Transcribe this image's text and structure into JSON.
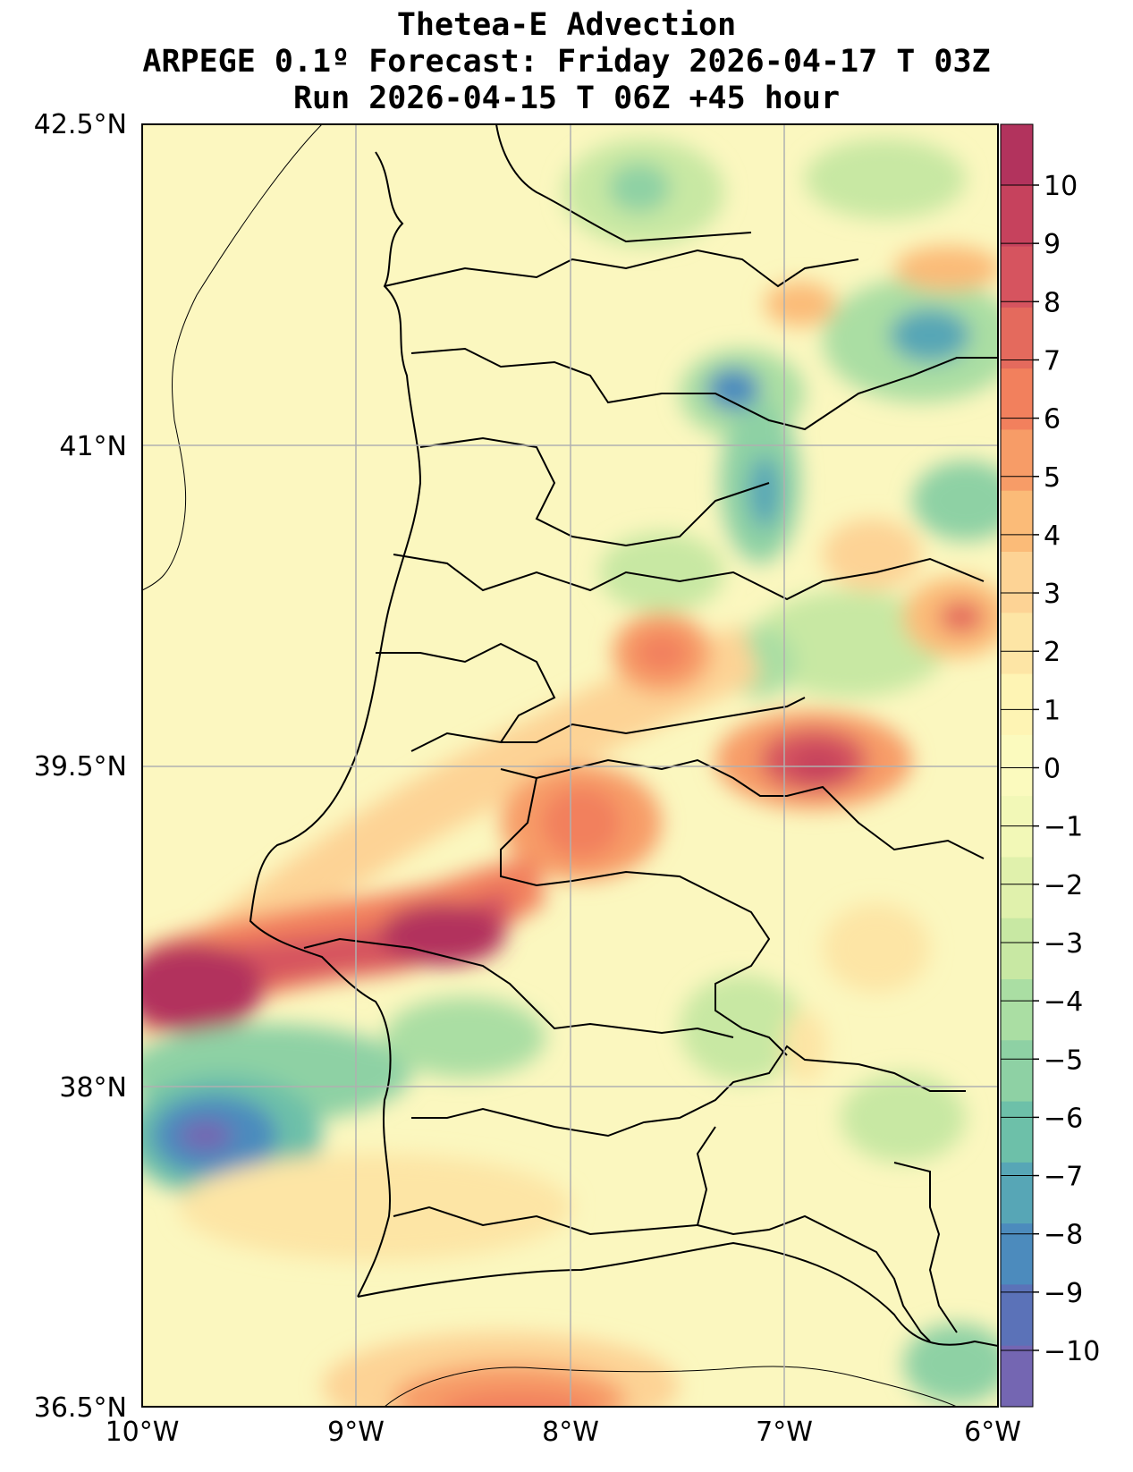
{
  "title": {
    "line1": "Thetea-E Advection",
    "line2": "ARPEGE 0.1º Forecast: Friday 2026-04-17 T 03Z",
    "line3": "Run 2026-04-15 T 06Z +45 hour"
  },
  "map": {
    "lat_labels": [
      "42.5°N",
      "41°N",
      "39.5°N",
      "38°N",
      "36.5°N"
    ],
    "lon_labels": [
      "10°W",
      "9°W",
      "8°W",
      "7°W",
      "6°W"
    ],
    "gridlines": true
  },
  "colorbar": {
    "ticks": [
      "10",
      "9",
      "8",
      "7",
      "6",
      "5",
      "4",
      "3",
      "2",
      "1",
      "0",
      "−1",
      "−2",
      "−3",
      "−4",
      "−5",
      "−6",
      "−7",
      "−8",
      "−9",
      "−10"
    ],
    "colors": [
      "#b2335d",
      "#c6425d",
      "#d6545f",
      "#e46a5d",
      "#f2805d",
      "#f79c67",
      "#fbbb78",
      "#fdd395",
      "#fde5a5",
      "#fef4b4",
      "#fbfabe",
      "#f2f8b7",
      "#e0f1ac",
      "#c8e8a3",
      "#aadea3",
      "#8ed1a4",
      "#6dc0a9",
      "#57a6b6",
      "#4c8bbd",
      "#5b72b8",
      "#7466b2"
    ]
  }
}
